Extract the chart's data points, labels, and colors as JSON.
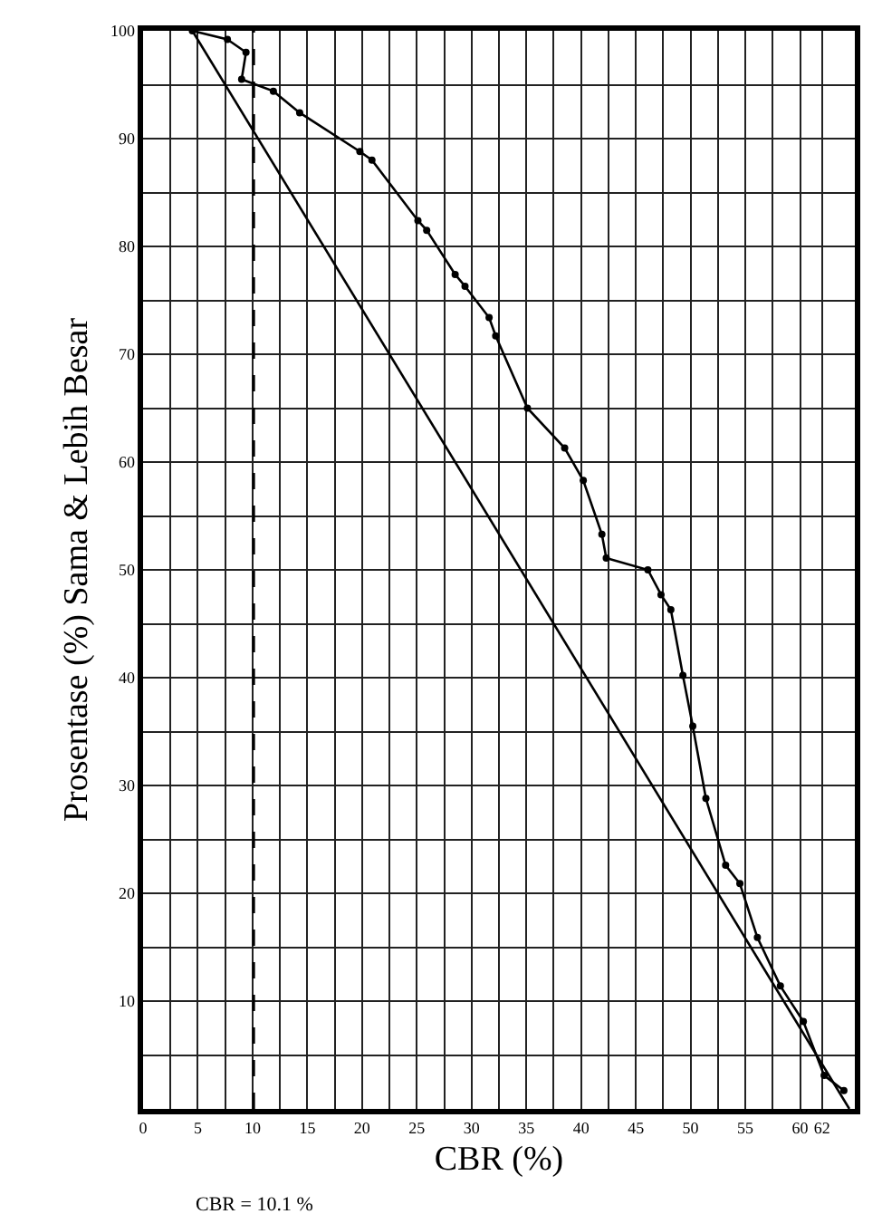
{
  "chart_data": {
    "type": "line",
    "xlabel": "CBR (%)",
    "ylabel": "Prosentase (%) Sama & Lebih Besar",
    "series": [
      {
        "color": "#000000",
        "marker": "circle",
        "x": [
          4.5,
          7.7,
          9.4,
          9.0,
          11.9,
          14.3,
          19.8,
          20.9,
          25.1,
          25.9,
          28.5,
          29.4,
          31.6,
          32.2,
          35.1,
          38.5,
          40.2,
          41.9,
          42.3,
          46.1,
          47.3,
          48.2,
          49.3,
          50.2,
          51.4,
          53.2,
          54.5,
          56.1,
          58.2,
          60.3,
          62.2,
          64.0
        ],
        "values": [
          100,
          99.2,
          98,
          95.5,
          94.4,
          92.4,
          88.8,
          88,
          82.4,
          81.5,
          77.4,
          76.3,
          73.4,
          71.7,
          65,
          61.3,
          58.3,
          53.3,
          51.1,
          50,
          47.7,
          46.3,
          40.2,
          35.5,
          28.8,
          22.6,
          20.9,
          15.9,
          11.4,
          8.1,
          3.1,
          1.7
        ]
      },
      {
        "color": "#000000",
        "marker": "none",
        "x": [
          4.5,
          64.5
        ],
        "values": [
          100,
          0
        ]
      }
    ],
    "xlim": [
      0,
      65
    ],
    "ylim": [
      0,
      100
    ],
    "xticks": [
      0,
      {
        "value": 2.5,
        "label": null
      },
      5,
      {
        "value": 7.5,
        "label": null
      },
      10,
      {
        "value": 12.5,
        "label": null
      },
      15,
      {
        "value": 17.5,
        "label": null
      },
      20,
      {
        "value": 22.5,
        "label": null
      },
      25,
      {
        "value": 27.5,
        "label": null
      },
      30,
      {
        "value": 32.5,
        "label": null
      },
      35,
      {
        "value": 37.5,
        "label": null
      },
      40,
      {
        "value": 42.5,
        "label": null
      },
      45,
      {
        "value": 47.5,
        "label": null
      },
      50,
      {
        "value": 52.5,
        "label": null
      },
      55,
      {
        "value": 57.5,
        "label": null
      },
      60,
      62
    ],
    "yticks": [
      {
        "value": 5,
        "label": null
      },
      10,
      {
        "value": 15,
        "label": null
      },
      20,
      {
        "value": 25,
        "label": null
      },
      30,
      {
        "value": 35,
        "label": null
      },
      40,
      {
        "value": 45,
        "label": null
      },
      50,
      {
        "value": 55,
        "label": null
      },
      60,
      {
        "value": 65,
        "label": null
      },
      70,
      {
        "value": 75,
        "label": null
      },
      80,
      {
        "value": 85,
        "label": null
      },
      90,
      {
        "value": 95,
        "label": null
      },
      100
    ],
    "ref_lines": [
      {
        "axis": "x",
        "value": 10.1,
        "label": "CBR = 10.1 %",
        "color": "#000000",
        "line_style": "dashed"
      }
    ],
    "grid": true
  }
}
